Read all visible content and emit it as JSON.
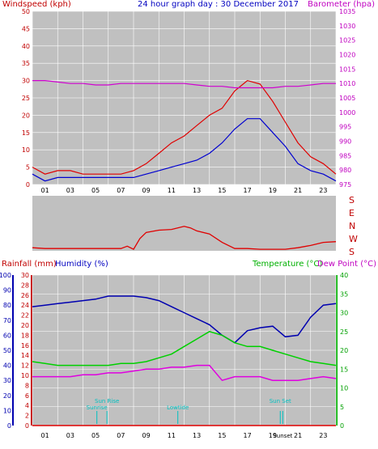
{
  "header": {
    "left": "Windspeed (kph)",
    "center": "24 hour graph day : 30 December 2017",
    "right": "Barometer (hpa)"
  },
  "wind_panel": {
    "x_ticks": [
      "01",
      "03",
      "05",
      "07",
      "09",
      "11",
      "13",
      "15",
      "17",
      "19",
      "21",
      "23"
    ],
    "y_left": [
      "0",
      "5",
      "10",
      "15",
      "20",
      "25",
      "30",
      "35",
      "40",
      "45",
      "50"
    ],
    "y_right": [
      "975",
      "980",
      "985",
      "990",
      "995",
      "1000",
      "1005",
      "1010",
      "1015",
      "1020",
      "1025",
      "1030",
      "1035"
    ]
  },
  "direction_panel": {
    "labels": [
      "S",
      "E",
      "N",
      "W",
      "S"
    ]
  },
  "lower_header": {
    "rainfall": "Rainfall (mm)",
    "humidity": "Humidity (%)",
    "temperature": "Temperature (°C)",
    "dewpoint": "Dew Point (°C)"
  },
  "lower_panel": {
    "x_ticks": [
      "01",
      "03",
      "05",
      "07",
      "09",
      "11",
      "13",
      "15",
      "17",
      "19",
      "21",
      "23"
    ],
    "humidity_axis": [
      "0",
      "10",
      "20",
      "30",
      "40",
      "50",
      "60",
      "70",
      "80",
      "90",
      "100"
    ],
    "rain_axis": [
      "0",
      "2",
      "4",
      "6",
      "8",
      "10",
      "12",
      "14",
      "16",
      "18",
      "20",
      "22",
      "24",
      "26",
      "28",
      "30"
    ],
    "temp_axis": [
      "0",
      "5",
      "10",
      "15",
      "20",
      "25",
      "30",
      "35",
      "40"
    ],
    "events": [
      {
        "label": "Sunrise",
        "hour": 5.1,
        "row": 2
      },
      {
        "label": "Sun Rise",
        "hour": 5.9,
        "row": 1
      },
      {
        "label": "Lowtide",
        "hour": 11.5,
        "row": 2
      },
      {
        "label": "Sun Set",
        "hour": 19.6,
        "row": 1
      },
      {
        "label": "Sunset",
        "hour": 19.8,
        "row": 3
      }
    ]
  },
  "colors": {
    "wind_gust": "#e00000",
    "wind_avg": "#0000d0",
    "barometer": "#d000d0",
    "direction": "#e00000",
    "humidity": "#0000b0",
    "temperature": "#00d000",
    "dewpoint": "#e000e0",
    "events": "#00c0c0",
    "plot_bg": "#c0c0c0",
    "grid": "#ffffff"
  },
  "chart_data": [
    {
      "type": "line",
      "title": "24 hour graph day : 30 December 2017",
      "xlabel": "",
      "ylabel": "Windspeed (kph)",
      "y2label": "Barometer (hpa)",
      "xlim": [
        0,
        24
      ],
      "ylim": [
        0,
        50
      ],
      "y2lim": [
        975,
        1035
      ],
      "x": [
        0,
        1,
        2,
        3,
        4,
        5,
        6,
        7,
        8,
        9,
        10,
        11,
        12,
        13,
        14,
        15,
        16,
        17,
        18,
        19,
        20,
        21,
        22,
        23,
        24
      ],
      "series": [
        {
          "name": "gust",
          "axis": "left",
          "values": [
            5,
            3,
            4,
            4,
            3,
            3,
            3,
            3,
            4,
            6,
            9,
            12,
            14,
            17,
            20,
            22,
            27,
            30,
            29,
            24,
            18,
            12,
            8,
            6,
            3
          ]
        },
        {
          "name": "average",
          "axis": "left",
          "values": [
            3,
            1,
            2,
            2,
            2,
            2,
            2,
            2,
            2,
            3,
            4,
            5,
            6,
            7,
            9,
            12,
            16,
            19,
            19,
            15,
            11,
            6,
            4,
            3,
            1
          ]
        },
        {
          "name": "barometer",
          "axis": "right",
          "values": [
            1011,
            1011,
            1010.5,
            1010,
            1010,
            1009.5,
            1009.5,
            1010,
            1010,
            1010,
            1010,
            1010,
            1010,
            1009.5,
            1009,
            1009,
            1008.5,
            1008.5,
            1008.5,
            1008.5,
            1009,
            1009,
            1009.5,
            1010,
            1010
          ]
        }
      ]
    },
    {
      "type": "line",
      "title": "",
      "ylabel": "Wind direction",
      "xlim": [
        0,
        24
      ],
      "ylim": [
        0,
        360
      ],
      "x": [
        0,
        1,
        2,
        3,
        4,
        5,
        6,
        7,
        7.5,
        8,
        8.5,
        9,
        10,
        11,
        12,
        12.5,
        13,
        14,
        15,
        16,
        17,
        18,
        19,
        20,
        21,
        22,
        23,
        24
      ],
      "series": [
        {
          "name": "direction",
          "values": [
            20,
            15,
            15,
            15,
            15,
            15,
            15,
            15,
            30,
            10,
            80,
            120,
            135,
            140,
            160,
            150,
            130,
            110,
            55,
            15,
            15,
            10,
            10,
            10,
            20,
            35,
            55,
            60
          ]
        }
      ]
    },
    {
      "type": "line",
      "title": "",
      "xlim": [
        0,
        24
      ],
      "series": [
        {
          "name": "Humidity (%)",
          "axis": "humidity",
          "range": [
            0,
            100
          ],
          "values": [
            79,
            80,
            81,
            82,
            83,
            84,
            86,
            86,
            86,
            85,
            83,
            79,
            75,
            71,
            67,
            60,
            55,
            63,
            65,
            66,
            59,
            60,
            72,
            80,
            81
          ]
        },
        {
          "name": "Temperature (°C)",
          "axis": "temperature",
          "range": [
            0,
            40
          ],
          "values": [
            17,
            16.5,
            16,
            16,
            16,
            16,
            16,
            16.5,
            16.5,
            17,
            18,
            19,
            21,
            23,
            25,
            24,
            22,
            21,
            21,
            20,
            19,
            18,
            17,
            16.5,
            16
          ]
        },
        {
          "name": "Dew Point (°C)",
          "axis": "temperature",
          "range": [
            0,
            40
          ],
          "values": [
            13,
            13,
            13,
            13,
            13.5,
            13.5,
            14,
            14,
            14.5,
            15,
            15,
            15.5,
            15.5,
            16,
            16,
            12,
            13,
            13,
            13,
            12,
            12,
            12,
            12.5,
            13,
            12.5
          ]
        },
        {
          "name": "Rainfall (mm)",
          "axis": "rain",
          "range": [
            0,
            30
          ],
          "values": [
            0,
            0,
            0,
            0,
            0,
            0,
            0,
            0,
            0,
            0,
            0,
            0,
            0,
            0,
            0,
            0,
            0,
            0,
            0,
            0,
            0,
            0,
            0,
            0,
            0
          ]
        }
      ]
    }
  ]
}
